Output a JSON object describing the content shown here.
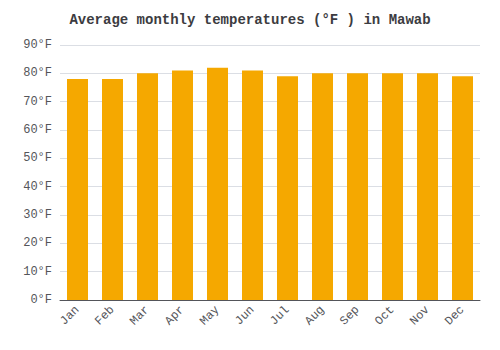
{
  "chart_data": {
    "type": "bar",
    "title": "Average monthly temperatures (°F ) in Mawab",
    "categories": [
      "Jan",
      "Feb",
      "Mar",
      "Apr",
      "May",
      "Jun",
      "Jul",
      "Aug",
      "Sep",
      "Oct",
      "Nov",
      "Dec"
    ],
    "values": [
      78,
      78,
      80,
      81,
      82,
      81,
      79,
      80,
      80,
      80,
      80,
      79
    ],
    "color": "#F5A800",
    "ylim": [
      0,
      90
    ],
    "yticks": [
      {
        "value": 0,
        "label": "0°F"
      },
      {
        "value": 10,
        "label": "10°F"
      },
      {
        "value": 20,
        "label": "20°F"
      },
      {
        "value": 30,
        "label": "30°F"
      },
      {
        "value": 40,
        "label": "40°F"
      },
      {
        "value": 50,
        "label": "50°F"
      },
      {
        "value": 60,
        "label": "60°F"
      },
      {
        "value": 70,
        "label": "70°F"
      },
      {
        "value": 80,
        "label": "80°F"
      },
      {
        "value": 90,
        "label": "90°F"
      }
    ],
    "grid": true
  }
}
